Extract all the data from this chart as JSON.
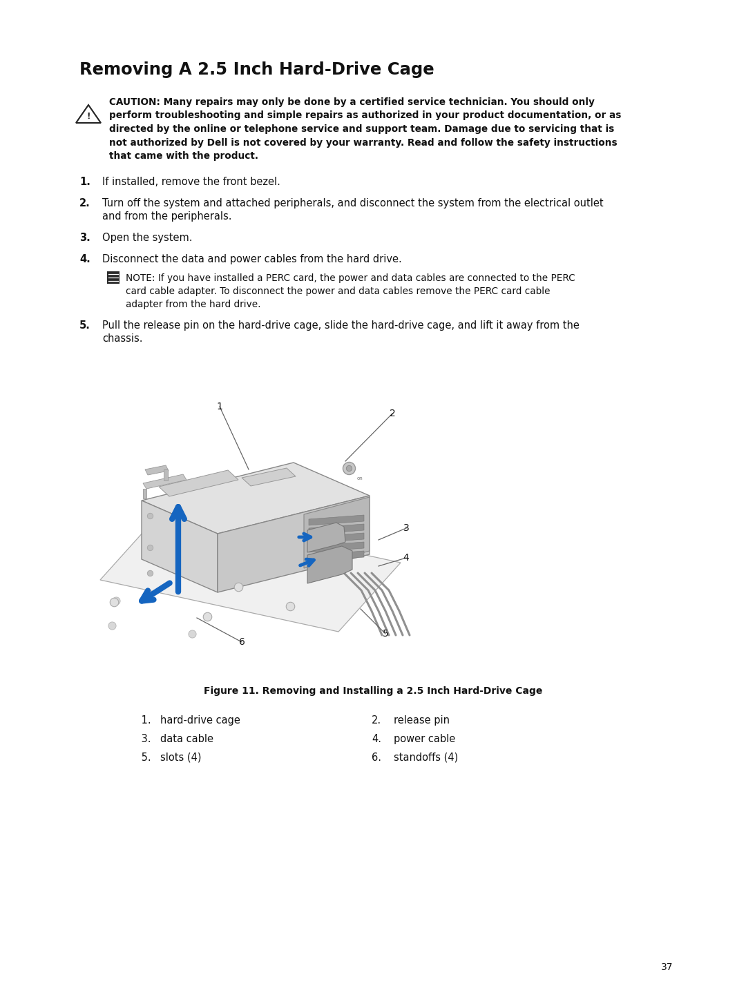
{
  "title": "Removing A 2.5 Inch Hard-Drive Cage",
  "bg_color": "#ffffff",
  "page_number": "37",
  "caution_lines": [
    "CAUTION: Many repairs may only be done by a certified service technician. You should only",
    "perform troubleshooting and simple repairs as authorized in your product documentation, or as",
    "directed by the online or telephone service and support team. Damage due to servicing that is",
    "not authorized by Dell is not covered by your warranty. Read and follow the safety instructions",
    "that came with the product."
  ],
  "step1_num": "1.",
  "step1_line": "If installed, remove the front bezel.",
  "step2_num": "2.",
  "step2_lines": [
    "Turn off the system and attached peripherals, and disconnect the system from the electrical outlet",
    "and from the peripherals."
  ],
  "step3_num": "3.",
  "step3_line": "Open the system.",
  "step4_num": "4.",
  "step4_line": "Disconnect the data and power cables from the hard drive.",
  "note_line1": "NOTE: If you have installed a PERC card, the power and data cables are connected to the PERC",
  "note_line2": "card cable adapter. To disconnect the power and data cables remove the PERC card cable",
  "note_line3": "adapter from the hard drive.",
  "step5_num": "5.",
  "step5_lines": [
    "Pull the release pin on the hard-drive cage, slide the hard-drive cage, and lift it away from the",
    "chassis."
  ],
  "figure_caption": "Figure 11. Removing and Installing a 2.5 Inch Hard-Drive Cage",
  "leg_col1": [
    [
      " 1.",
      "hard-drive cage"
    ],
    [
      " 3.",
      "data cable"
    ],
    [
      " 5.",
      "slots (4)"
    ]
  ],
  "leg_col2": [
    [
      "2.",
      "release pin"
    ],
    [
      "4.",
      "power cable"
    ],
    [
      "6.",
      "standoffs (4)"
    ]
  ]
}
